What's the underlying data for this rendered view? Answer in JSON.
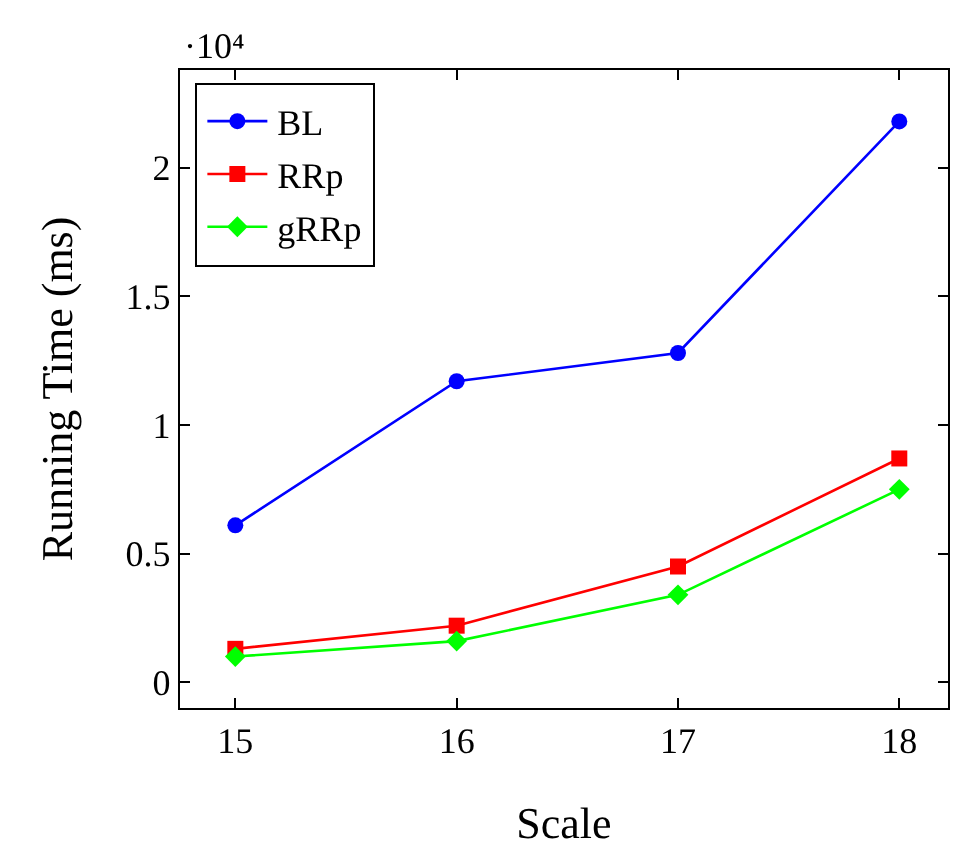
{
  "chart_data": {
    "type": "line",
    "xlabel": "Scale",
    "ylabel": "Running Time (ms)",
    "annotations": [
      "·10⁴"
    ],
    "x": [
      15,
      16,
      17,
      18
    ],
    "series": [
      {
        "name": "BL",
        "color": "#0000ff",
        "marker": "circle",
        "values": [
          0.61,
          1.17,
          1.28,
          2.18
        ]
      },
      {
        "name": "RRp",
        "color": "#ff0000",
        "marker": "square",
        "values": [
          0.13,
          0.22,
          0.45,
          0.87
        ]
      },
      {
        "name": "gRRp",
        "color": "#00ff00",
        "marker": "diamond",
        "values": [
          0.1,
          0.16,
          0.34,
          0.75
        ]
      }
    ],
    "xlim": [
      14.75,
      18.22
    ],
    "xticks": [
      15,
      16,
      17,
      18
    ],
    "ylim": [
      -0.1,
      2.38
    ],
    "yticks": [
      0,
      0.5,
      1,
      1.5,
      2
    ],
    "grid": false,
    "legend": "top left",
    "line_style": "solid"
  }
}
